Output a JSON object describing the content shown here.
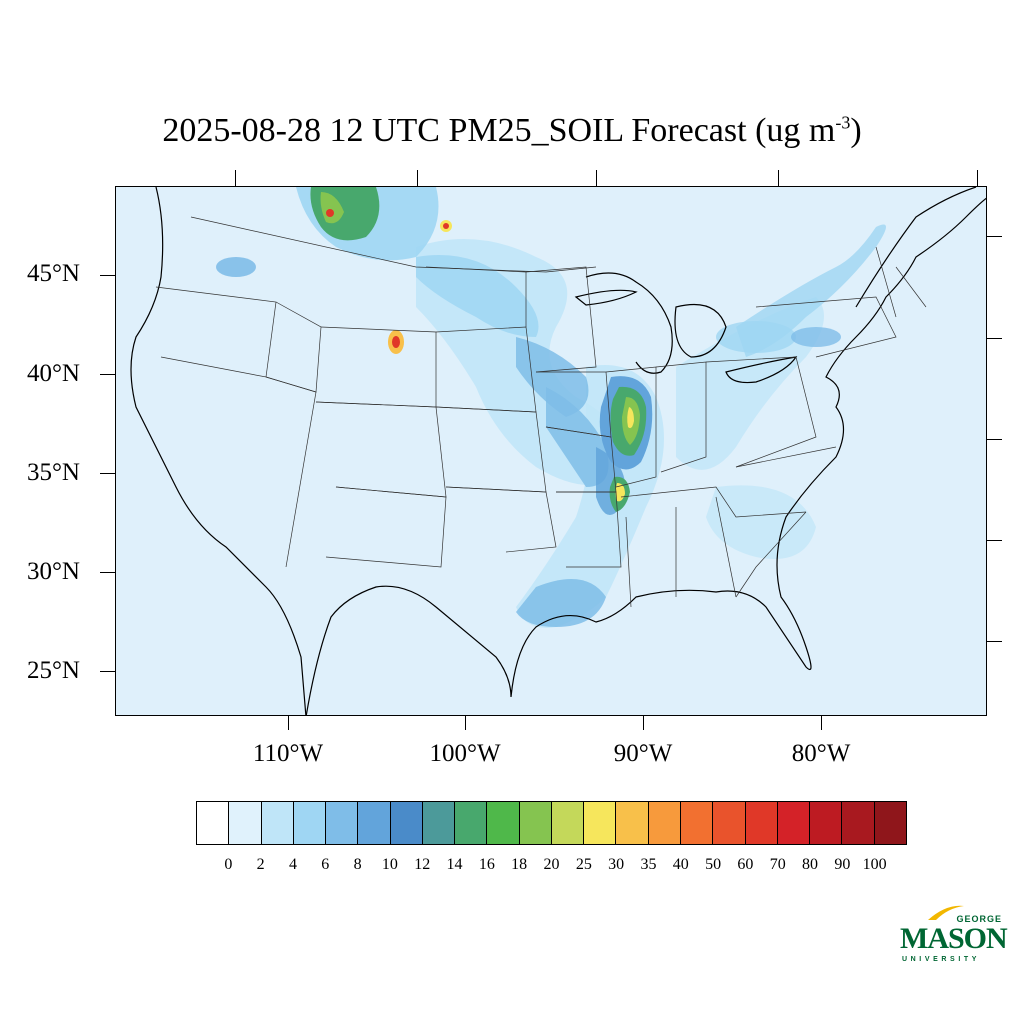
{
  "title": {
    "main": "2025-08-28 12 UTC PM25_SOIL Forecast (ug m",
    "exponent": "-3",
    "close": ")"
  },
  "axes": {
    "lat_labels": [
      "45°N",
      "40°N",
      "35°N",
      "30°N",
      "25°N"
    ],
    "lon_labels": [
      "110°W",
      "100°W",
      "90°W",
      "80°W"
    ]
  },
  "colorbar": {
    "labels": [
      "0",
      "2",
      "4",
      "6",
      "8",
      "10",
      "12",
      "14",
      "16",
      "18",
      "20",
      "25",
      "30",
      "35",
      "40",
      "50",
      "60",
      "70",
      "80",
      "90",
      "100"
    ],
    "colors": [
      "#ffffff",
      "#e0f2fc",
      "#bfe5f8",
      "#9fd6f3",
      "#7fbde8",
      "#62a4db",
      "#4a8bc9",
      "#4c9a9a",
      "#48a86d",
      "#4fb84a",
      "#85c450",
      "#c4d85a",
      "#f6e65c",
      "#f8c04a",
      "#f79a3c",
      "#f27030",
      "#e9532c",
      "#e03828",
      "#d42228",
      "#bd1b22",
      "#a8191f",
      "#8f161b"
    ]
  },
  "logo": {
    "line1": "GEORGE",
    "line2": "MASON",
    "line3": "UNIVERSITY"
  },
  "map": {
    "ocean_color": "#dff0fb",
    "border_color": "#000000"
  }
}
